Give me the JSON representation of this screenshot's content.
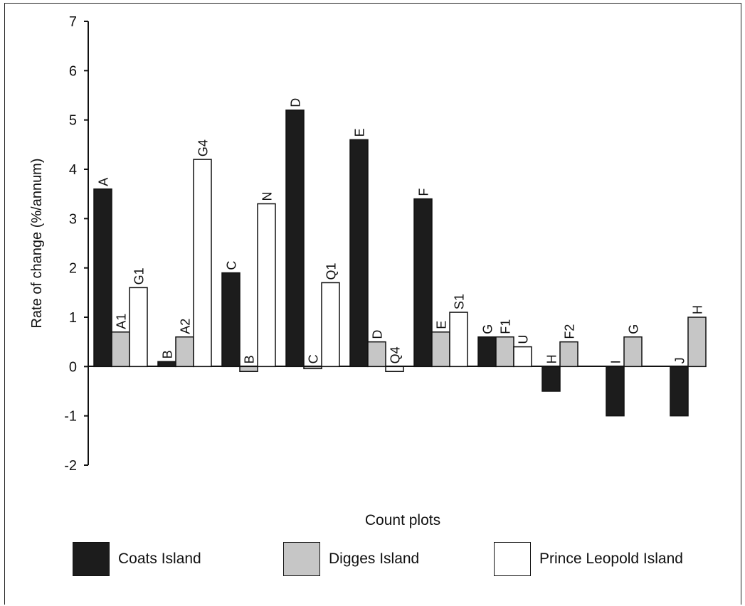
{
  "chart_data": {
    "type": "bar",
    "xlabel": "Count plots",
    "ylabel": "Rate of change (%/annum)",
    "ylim": [
      -2,
      7
    ],
    "yticks": [
      7,
      6,
      5,
      4,
      3,
      2,
      1,
      0,
      -1,
      -2
    ],
    "grid": false,
    "legend_placement": "bottom",
    "colors": {
      "Coats Island": "#1c1c1c",
      "Digges Island": "#c6c6c6",
      "Prince Leopold Island": "#ffffff"
    },
    "groups": [
      {
        "bars": [
          {
            "series": "Coats Island",
            "label": "A",
            "value": 3.6
          },
          {
            "series": "Digges Island",
            "label": "A1",
            "value": 0.7
          },
          {
            "series": "Prince Leopold Island",
            "label": "G1",
            "value": 1.6
          }
        ]
      },
      {
        "bars": [
          {
            "series": "Coats Island",
            "label": "B",
            "value": 0.1
          },
          {
            "series": "Digges Island",
            "label": "A2",
            "value": 0.6
          },
          {
            "series": "Prince Leopold Island",
            "label": "G4",
            "value": 4.2
          }
        ]
      },
      {
        "bars": [
          {
            "series": "Coats Island",
            "label": "C",
            "value": 1.9
          },
          {
            "series": "Digges Island",
            "label": "B",
            "value": -0.1
          },
          {
            "series": "Prince Leopold Island",
            "label": "N",
            "value": 3.3
          }
        ]
      },
      {
        "bars": [
          {
            "series": "Coats Island",
            "label": "D",
            "value": 5.2
          },
          {
            "series": "Digges Island",
            "label": "C",
            "value": 0.0
          },
          {
            "series": "Prince Leopold Island",
            "label": "Q1",
            "value": 1.7
          }
        ]
      },
      {
        "bars": [
          {
            "series": "Coats Island",
            "label": "E",
            "value": 4.6
          },
          {
            "series": "Digges Island",
            "label": "D",
            "value": 0.5
          },
          {
            "series": "Prince Leopold Island",
            "label": "Q4",
            "value": -0.1
          }
        ]
      },
      {
        "bars": [
          {
            "series": "Coats Island",
            "label": "F",
            "value": 3.4
          },
          {
            "series": "Digges Island",
            "label": "E",
            "value": 0.7
          },
          {
            "series": "Prince Leopold Island",
            "label": "S1",
            "value": 1.1
          }
        ]
      },
      {
        "bars": [
          {
            "series": "Coats Island",
            "label": "G",
            "value": 0.6
          },
          {
            "series": "Digges Island",
            "label": "F1",
            "value": 0.6
          },
          {
            "series": "Prince Leopold Island",
            "label": "U",
            "value": 0.4
          }
        ]
      },
      {
        "bars": [
          {
            "series": "Coats Island",
            "label": "H",
            "value": -0.5
          },
          {
            "series": "Digges Island",
            "label": "F2",
            "value": 0.5
          }
        ]
      },
      {
        "bars": [
          {
            "series": "Coats Island",
            "label": "I",
            "value": -1.0
          },
          {
            "series": "Digges Island",
            "label": "G",
            "value": 0.6
          }
        ]
      },
      {
        "bars": [
          {
            "series": "Coats Island",
            "label": "J",
            "value": -1.0
          },
          {
            "series": "Digges Island",
            "label": "H",
            "value": 1.0
          }
        ]
      }
    ],
    "legend": [
      "Coats Island",
      "Digges Island",
      "Prince Leopold Island"
    ]
  }
}
